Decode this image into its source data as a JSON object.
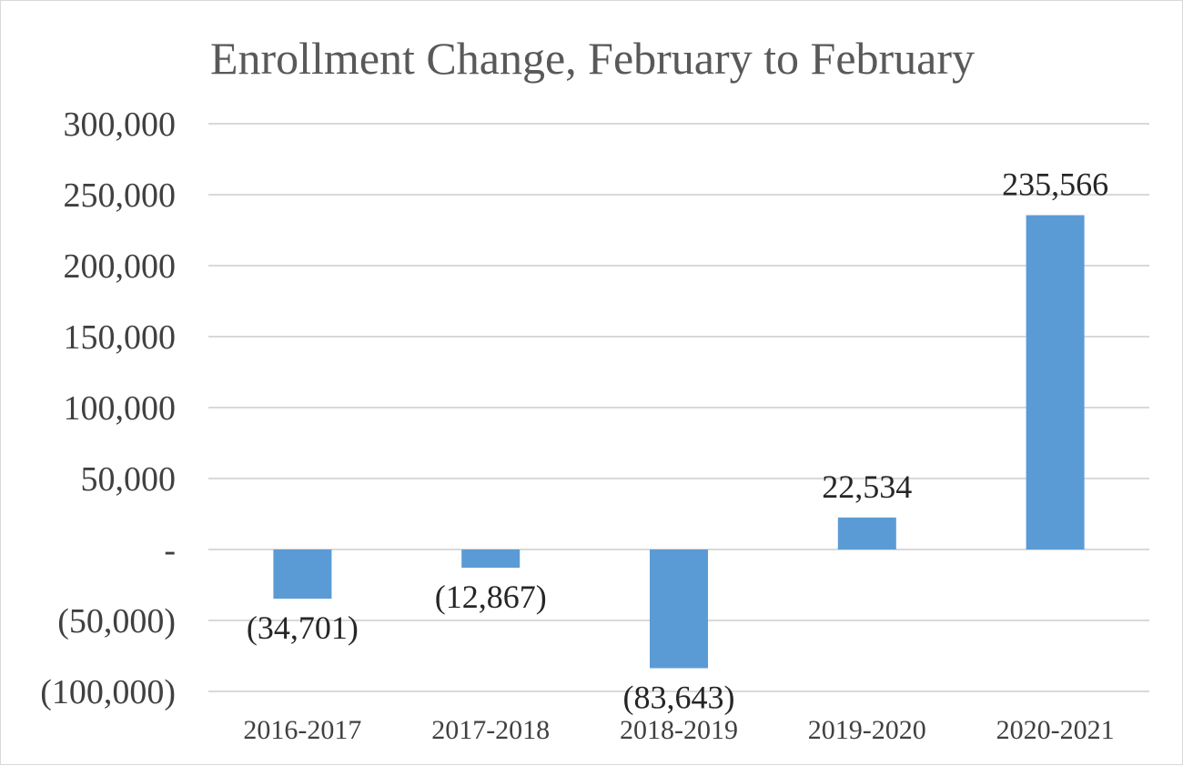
{
  "chart_data": {
    "type": "bar",
    "title": "Enrollment Change, February to February",
    "categories": [
      "2016-2017",
      "2017-2018",
      "2018-2019",
      "2019-2020",
      "2020-2021"
    ],
    "values": [
      -34701,
      -12867,
      -83643,
      22534,
      235566
    ],
    "data_labels": [
      "(34,701)",
      "(12,867)",
      "(83,643)",
      "22,534",
      "235,566"
    ],
    "ylim": [
      -100000,
      300000
    ],
    "y_ticks": [
      300000,
      250000,
      200000,
      150000,
      100000,
      50000,
      0,
      -50000,
      -100000
    ],
    "y_tick_labels": [
      "300,000",
      "250,000",
      "200,000",
      "150,000",
      "100,000",
      "50,000",
      "-",
      "(50,000)",
      "(100,000)"
    ],
    "xlabel": "",
    "ylabel": "",
    "grid": true,
    "legend": "none",
    "bar_color": "#5b9bd5"
  }
}
